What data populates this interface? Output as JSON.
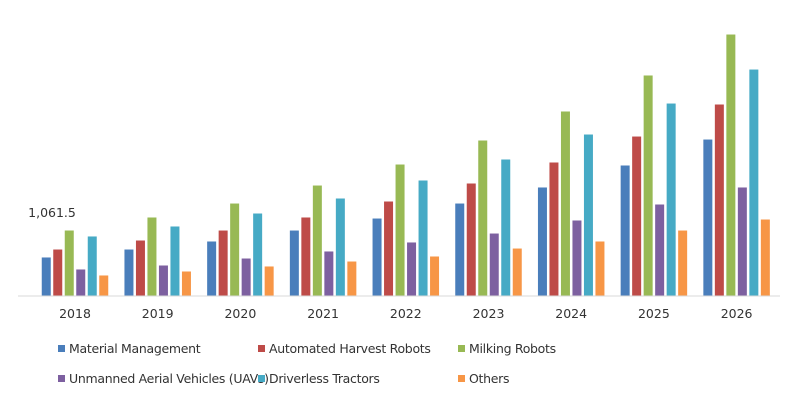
{
  "chart_data": {
    "type": "bar",
    "title": "",
    "xlabel": "",
    "ylabel": "",
    "ylim": [
      0,
      4500
    ],
    "grid": false,
    "legend_placement": "bottom",
    "categories": [
      "2018",
      "2019",
      "2020",
      "2021",
      "2022",
      "2023",
      "2024",
      "2025",
      "2026"
    ],
    "series": [
      {
        "name": "Material Management",
        "color": "#4a7ebb",
        "values": [
          621,
          751,
          882,
          1061,
          1257,
          1502,
          1764,
          2123,
          2547
        ]
      },
      {
        "name": "Automated Harvest Robots",
        "color": "#be4b48",
        "values": [
          751,
          898,
          1061,
          1274,
          1535,
          1829,
          2172,
          2596,
          3119
        ]
      },
      {
        "name": "Milking Robots",
        "color": "#98b954",
        "values": [
          1061.5,
          1274,
          1502,
          1796,
          2139,
          2531,
          3005,
          3593,
          4262
        ]
      },
      {
        "name": "Unmanned Aerial Vehicles (UAVs)",
        "color": "#7d60a0",
        "values": [
          425,
          490,
          604,
          719,
          866,
          1012,
          1225,
          1486,
          1764
        ]
      },
      {
        "name": "Driverless Tractors",
        "color": "#46aac5",
        "values": [
          964,
          1127,
          1339,
          1584,
          1878,
          2221,
          2629,
          3135,
          3690
        ]
      },
      {
        "name": "Others",
        "color": "#f79646",
        "values": [
          327,
          392,
          474,
          555,
          637,
          767,
          882,
          1061,
          1241
        ]
      }
    ],
    "annotations": [
      {
        "text": "1,061.5",
        "category": "2018"
      }
    ]
  }
}
